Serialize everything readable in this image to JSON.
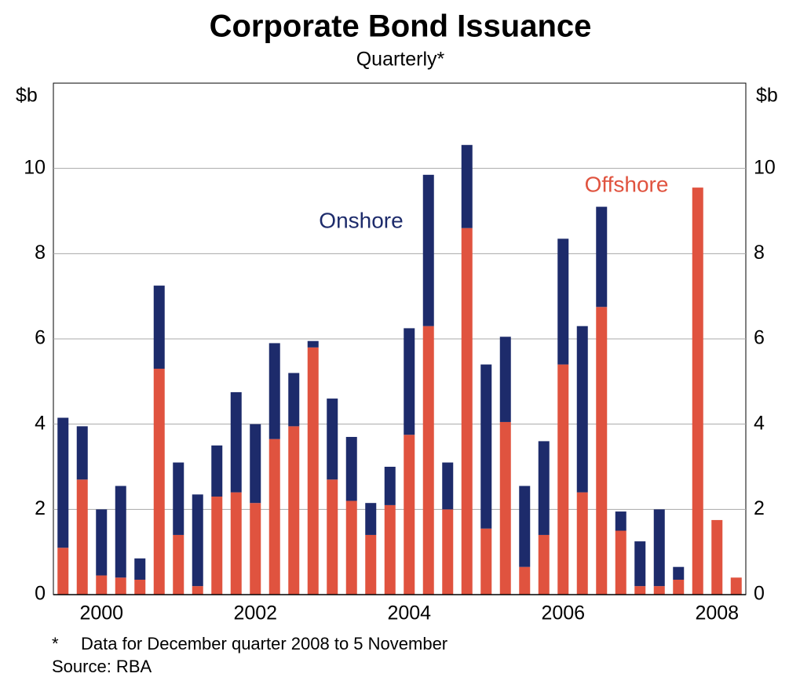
{
  "chart_data": {
    "type": "stacked_bar",
    "title": "Corporate Bond Issuance",
    "subtitle": "Quarterly*",
    "y_unit": "$b",
    "categories": [
      null,
      null,
      "2000",
      null,
      null,
      null,
      null,
      null,
      null,
      null,
      "2002",
      null,
      null,
      null,
      null,
      null,
      null,
      null,
      "2004",
      null,
      null,
      null,
      null,
      null,
      null,
      null,
      "2006",
      null,
      null,
      null,
      null,
      null,
      null,
      null,
      "2008",
      null
    ],
    "series": [
      {
        "name": "Offshore",
        "color": "#e0533f",
        "values": [
          1.1,
          2.7,
          0.45,
          0.4,
          0.35,
          5.3,
          1.4,
          0.2,
          2.3,
          2.4,
          2.15,
          3.65,
          3.95,
          5.8,
          2.7,
          2.2,
          1.4,
          2.1,
          3.75,
          6.3,
          2.0,
          8.6,
          1.55,
          4.05,
          0.65,
          1.4,
          5.4,
          2.4,
          6.75,
          1.5,
          0.2,
          0.2,
          0.35,
          9.55,
          1.75,
          0.4
        ]
      },
      {
        "name": "Onshore",
        "color": "#1d2b6b",
        "values": [
          3.05,
          1.25,
          1.55,
          2.15,
          0.5,
          1.95,
          1.7,
          2.15,
          1.2,
          2.35,
          1.85,
          2.25,
          1.25,
          0.15,
          1.9,
          1.5,
          0.75,
          0.9,
          2.5,
          3.55,
          1.1,
          1.95,
          3.85,
          2.0,
          1.9,
          2.2,
          2.95,
          3.9,
          2.35,
          0.45,
          1.05,
          1.8,
          0.3,
          0,
          0,
          0
        ]
      }
    ],
    "ylim": [
      0,
      12
    ],
    "yticks": [
      0,
      2,
      4,
      6,
      8,
      10
    ],
    "grid": true,
    "footnote": "Data for December quarter 2008 to 5 November",
    "footnote_mark": "*",
    "source": "Source: RBA"
  }
}
